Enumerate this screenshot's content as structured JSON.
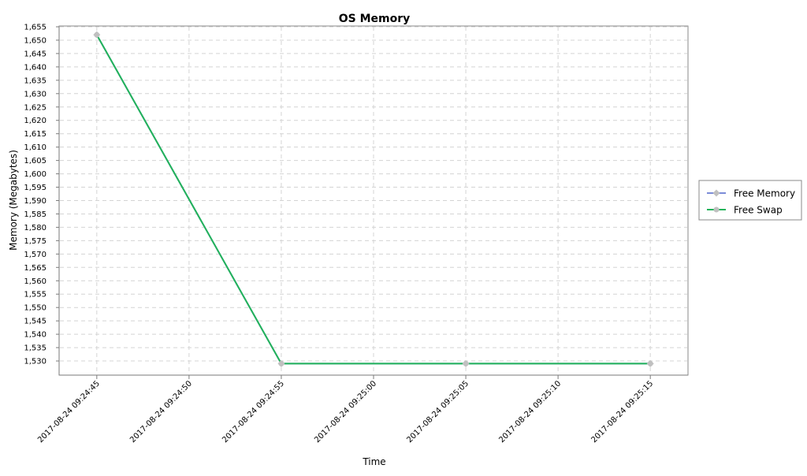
{
  "chart_data": {
    "type": "line",
    "title": "OS Memory",
    "xlabel": "Time",
    "ylabel": "Memory (Megabytes)",
    "ylim": [
      1525,
      1655
    ],
    "xlim": [
      "2017-08-24 09:24:43",
      "2017-08-24 09:25:17"
    ],
    "x_ticks": [
      "2017-08-24 09:24:45",
      "2017-08-24 09:24:50",
      "2017-08-24 09:24:55",
      "2017-08-24 09:25:00",
      "2017-08-24 09:25:05",
      "2017-08-24 09:25:10",
      "2017-08-24 09:25:15"
    ],
    "y_ticks": [
      "1,530",
      "1,535",
      "1,540",
      "1,545",
      "1,550",
      "1,555",
      "1,560",
      "1,565",
      "1,570",
      "1,575",
      "1,580",
      "1,585",
      "1,590",
      "1,595",
      "1,600",
      "1,605",
      "1,610",
      "1,615",
      "1,620",
      "1,625",
      "1,630",
      "1,635",
      "1,640",
      "1,645",
      "1,650",
      "1,655"
    ],
    "x": [
      "2017-08-24 09:24:45",
      "2017-08-24 09:24:55",
      "2017-08-24 09:25:05",
      "2017-08-24 09:25:15"
    ],
    "series": [
      {
        "name": "Free Memory",
        "values": [
          1652,
          1529,
          1529,
          1529
        ],
        "color": "#7b8cd8"
      },
      {
        "name": "Free Swap",
        "values": [
          1652,
          1529,
          1529,
          1529
        ],
        "color": "#22b35a"
      }
    ],
    "marker_color": "#c0c0c0",
    "grid": true,
    "legend_position": "right"
  }
}
